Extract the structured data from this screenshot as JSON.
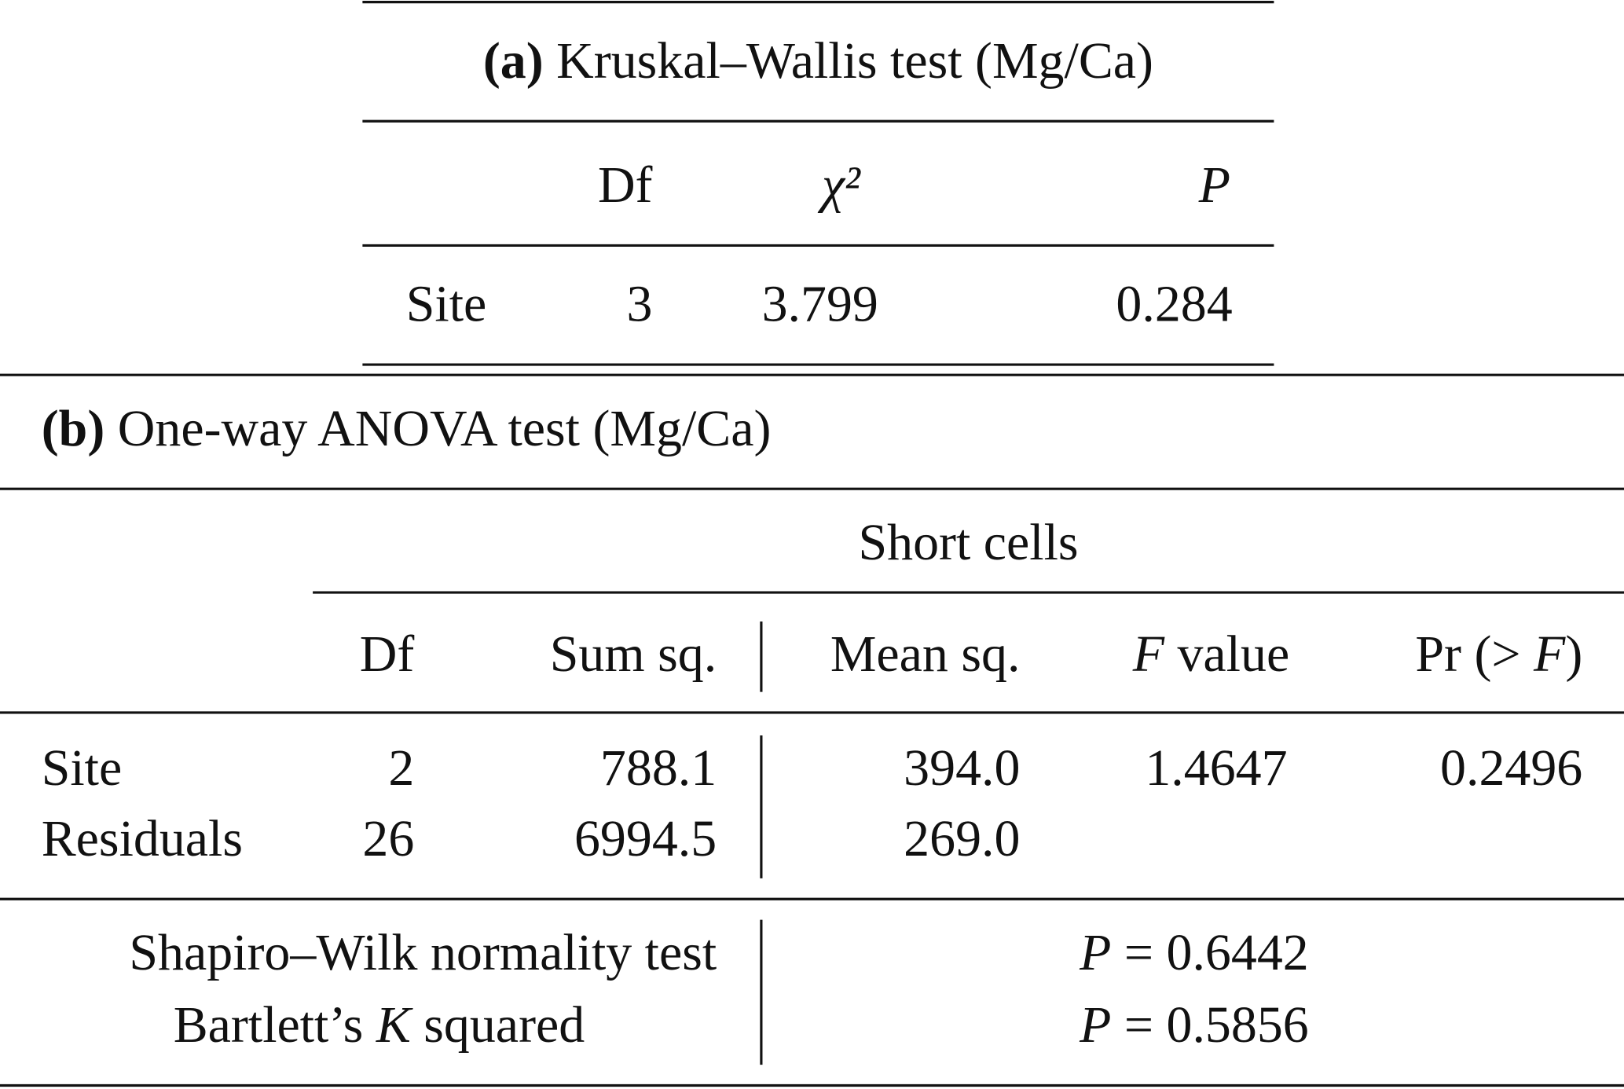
{
  "table_a": {
    "label": "(a)",
    "title": "Kruskal–Wallis test (Mg/Ca)",
    "columns": [
      "Df",
      "χ²",
      "P"
    ],
    "rows": [
      [
        "Site",
        "3",
        "3.799",
        "0.284"
      ]
    ]
  },
  "table_b": {
    "label": "(b)",
    "title": "One-way ANOVA test (Mg/Ca)",
    "group_header": "Short cells",
    "columns": {
      "df": "Df",
      "sum_sq": "Sum sq.",
      "mean_sq": "Mean sq.",
      "f_value": [
        "F",
        " value"
      ],
      "pr": [
        "Pr (> ",
        "F",
        ")"
      ]
    },
    "rows": [
      [
        "Site",
        "2",
        "788.1",
        "394.0",
        "1.4647",
        "0.2496"
      ],
      [
        "Residuals",
        "26",
        "6994.5",
        "269.0"
      ]
    ],
    "tests": [
      {
        "name": [
          "Shapiro–Wilk normality test"
        ],
        "result": [
          "P",
          " = 0.6442"
        ]
      },
      {
        "name": [
          "Bartlett’s ",
          "K",
          " squared"
        ],
        "result": [
          "P",
          " = 0.5856"
        ]
      }
    ]
  }
}
